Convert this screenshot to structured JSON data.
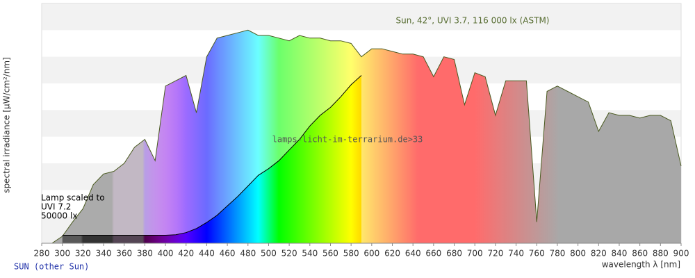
{
  "chart_data": {
    "type": "spectrum",
    "y_label": "spectral irradiance [µW/cm²/nm]",
    "x_label": "wavelength λ [nm]",
    "watermark": "lamps-licht-im-terrarium.de>33",
    "footer_link": "SUN (other Sun)",
    "xlim": [
      280,
      900
    ],
    "xticks": [
      280,
      300,
      320,
      340,
      360,
      380,
      400,
      420,
      440,
      460,
      480,
      500,
      520,
      540,
      560,
      580,
      600,
      620,
      640,
      660,
      680,
      700,
      720,
      740,
      760,
      780,
      800,
      820,
      840,
      860,
      880,
      900
    ],
    "ylim": [
      0,
      9
    ],
    "ygrid": [
      0,
      1,
      2,
      3,
      4,
      5,
      6,
      7,
      8,
      9
    ],
    "series": [
      {
        "name": "Sun, 42°, UVI 3.7, 116 000 lx (ASTM)",
        "color": "#4a5a20",
        "x": [
          290,
          300,
          310,
          320,
          330,
          340,
          350,
          360,
          370,
          380,
          390,
          400,
          410,
          420,
          430,
          440,
          450,
          460,
          470,
          480,
          490,
          500,
          510,
          520,
          530,
          540,
          550,
          560,
          570,
          580,
          590,
          600,
          610,
          620,
          630,
          640,
          650,
          660,
          670,
          680,
          690,
          700,
          710,
          720,
          730,
          740,
          750,
          760,
          770,
          780,
          790,
          800,
          810,
          820,
          830,
          840,
          850,
          860,
          870,
          880,
          890,
          900
        ],
        "values": [
          0,
          0.26,
          0.8,
          1.3,
          2.2,
          2.6,
          2.7,
          3.0,
          3.6,
          3.9,
          3.1,
          5.9,
          6.1,
          6.3,
          4.9,
          7.0,
          7.7,
          7.8,
          7.9,
          8.0,
          7.8,
          7.8,
          7.7,
          7.6,
          7.8,
          7.7,
          7.7,
          7.6,
          7.6,
          7.5,
          7.0,
          7.3,
          7.3,
          7.2,
          7.1,
          7.1,
          7.0,
          6.25,
          7.0,
          6.9,
          5.2,
          6.4,
          6.25,
          4.8,
          6.1,
          6.1,
          6.1,
          0.8,
          5.7,
          5.9,
          5.7,
          5.5,
          5.3,
          4.2,
          4.9,
          4.8,
          4.8,
          4.7,
          4.8,
          4.8,
          4.6,
          2.9
        ]
      },
      {
        "label_lines": [
          "Lamp scaled to",
          "UVI 7.2",
          "50000 lx"
        ],
        "color": "#000000",
        "x": [
          300,
          310,
          320,
          330,
          340,
          350,
          360,
          370,
          380,
          390,
          400,
          410,
          420,
          430,
          440,
          450,
          460,
          470,
          480,
          490,
          500,
          510,
          520,
          530,
          540,
          550,
          560,
          570,
          580,
          590
        ],
        "values": [
          0.3,
          0.3,
          0.3,
          0.3,
          0.3,
          0.3,
          0.3,
          0.3,
          0.3,
          0.3,
          0.3,
          0.32,
          0.4,
          0.55,
          0.78,
          1.05,
          1.4,
          1.75,
          2.15,
          2.55,
          2.8,
          3.1,
          3.5,
          3.9,
          4.4,
          4.8,
          5.1,
          5.5,
          5.95,
          6.3
        ]
      }
    ]
  }
}
